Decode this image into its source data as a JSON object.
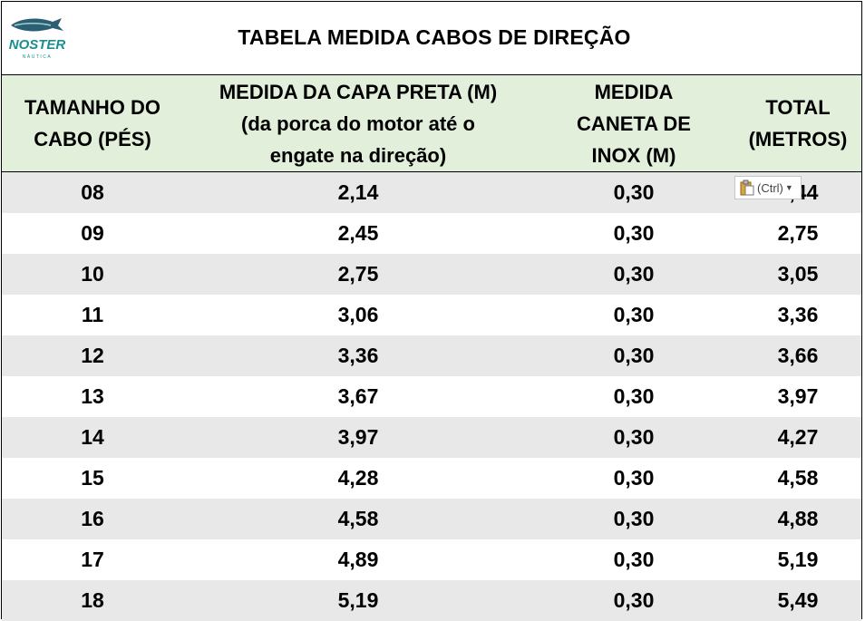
{
  "title": "TABELA MEDIDA CABOS DE DIREÇÃO",
  "logo": {
    "text": "NOSTER",
    "subtext": "NÁUTICA",
    "icon": "fish-logo-icon",
    "color": "#1a8f8f"
  },
  "colors": {
    "header_bg": "#e2efda",
    "shade_row": "#e8e8e8"
  },
  "headers": [
    {
      "lines": [
        "TAMANHO DO",
        "CABO (PÉS)"
      ]
    },
    {
      "lines": [
        "MEDIDA DA CAPA PRETA (M)",
        "(da porca do motor até o",
        "engate na direção)"
      ]
    },
    {
      "lines": [
        "MEDIDA",
        "CANETA DE",
        "INOX (M)"
      ]
    },
    {
      "lines": [
        "TOTAL",
        "(METROS)"
      ]
    }
  ],
  "rows": [
    {
      "size": "08",
      "capa": "2,14",
      "caneta": "0,30",
      "total": "2,44"
    },
    {
      "size": "09",
      "capa": "2,45",
      "caneta": "0,30",
      "total": "2,75"
    },
    {
      "size": "10",
      "capa": "2,75",
      "caneta": "0,30",
      "total": "3,05"
    },
    {
      "size": "11",
      "capa": "3,06",
      "caneta": "0,30",
      "total": "3,36"
    },
    {
      "size": "12",
      "capa": "3,36",
      "caneta": "0,30",
      "total": "3,66"
    },
    {
      "size": "13",
      "capa": "3,67",
      "caneta": "0,30",
      "total": "3,97"
    },
    {
      "size": "14",
      "capa": "3,97",
      "caneta": "0,30",
      "total": "4,27"
    },
    {
      "size": "15",
      "capa": "4,28",
      "caneta": "0,30",
      "total": "4,58"
    },
    {
      "size": "16",
      "capa": "4,58",
      "caneta": "0,30",
      "total": "4,88"
    },
    {
      "size": "17",
      "capa": "4,89",
      "caneta": "0,30",
      "total": "5,19"
    },
    {
      "size": "18",
      "capa": "5,19",
      "caneta": "0,30",
      "total": "5,49"
    }
  ],
  "paste_options": {
    "label": "(Ctrl)",
    "icon": "clipboard-icon"
  }
}
